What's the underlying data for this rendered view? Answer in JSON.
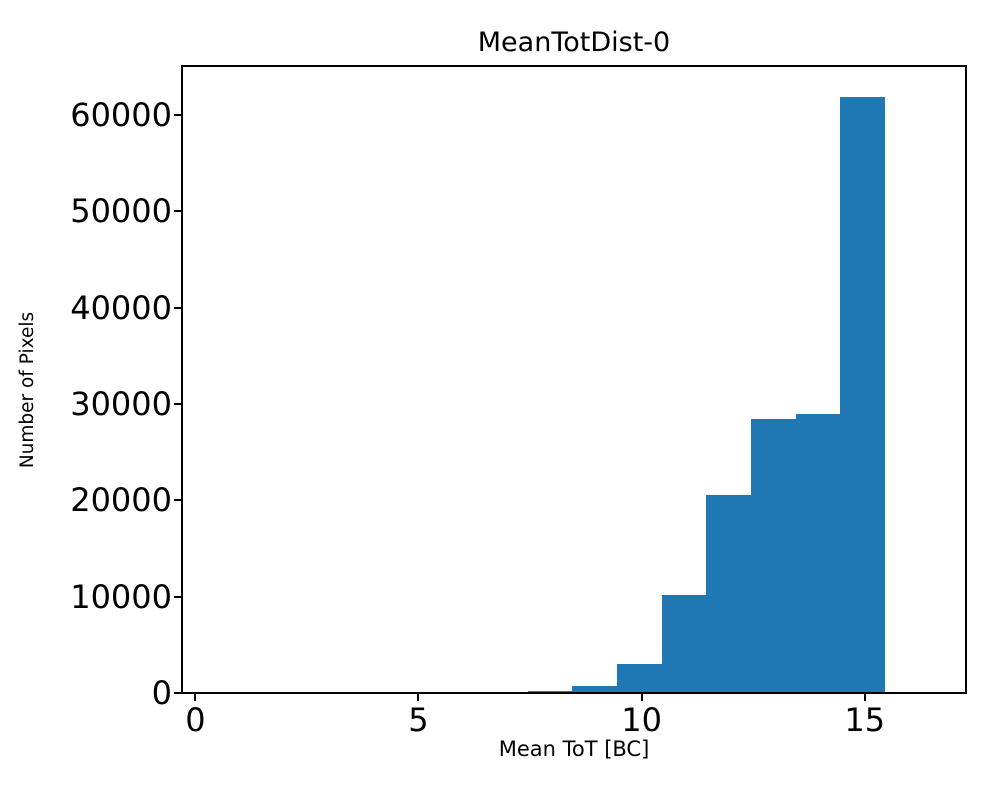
{
  "chart_data": {
    "type": "bar",
    "subtype": "histogram",
    "title": "MeanTotDist-0",
    "xlabel": "Mean ToT [BC]",
    "ylabel": "Number of Pixels",
    "bin_edges": [
      7.45,
      8.45,
      9.45,
      10.45,
      11.45,
      12.45,
      13.45,
      14.45,
      15.45
    ],
    "counts": [
      200,
      700,
      3000,
      10200,
      20600,
      28400,
      29000,
      61900
    ],
    "bar_color": "#1f77b4",
    "axis_color": "#000000",
    "background_color": "#ffffff",
    "xlim": [
      -0.3,
      17.27
    ],
    "ylim": [
      0,
      65100
    ],
    "x_ticks": [
      0,
      5,
      10,
      15
    ],
    "y_ticks": [
      0,
      10000,
      20000,
      30000,
      40000,
      50000,
      60000
    ],
    "grid": false,
    "legend": null
  }
}
